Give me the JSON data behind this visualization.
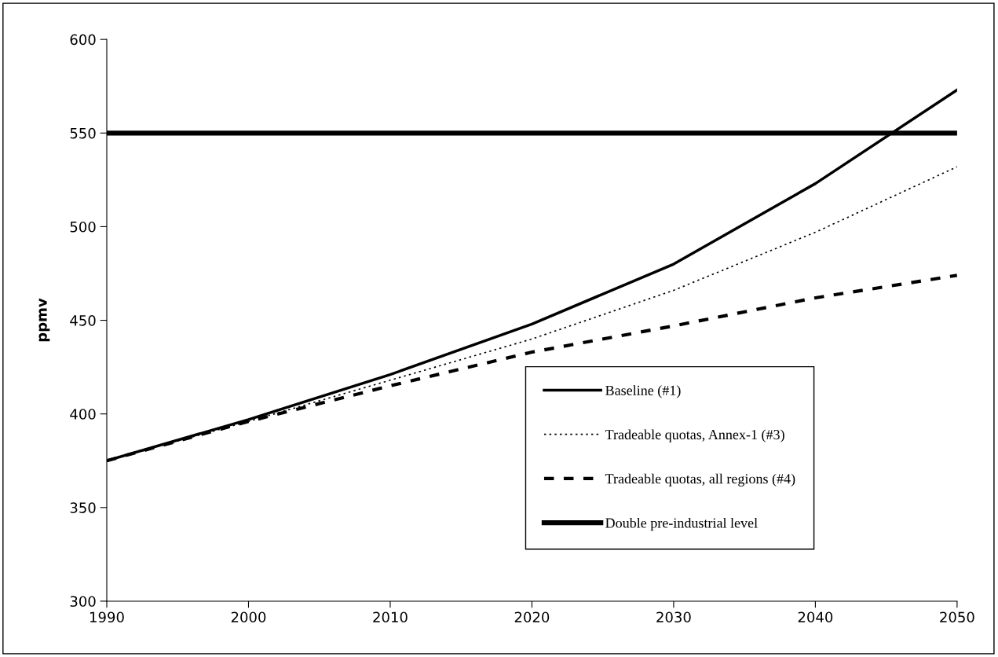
{
  "chart_data": {
    "type": "line",
    "ylabel": "ppmv",
    "x": [
      1990,
      2000,
      2010,
      2020,
      2030,
      2040,
      2050
    ],
    "series": [
      {
        "name": "Baseline (#1)",
        "color": "#000000",
        "line_style": "solid",
        "values": [
          375,
          397,
          421,
          448,
          480,
          523,
          573
        ]
      },
      {
        "name": "Tradeable quotas, Annex-1 (#3)",
        "color": "#000000",
        "line_style": "dotted",
        "values": [
          375,
          396,
          418,
          440,
          466,
          497,
          532
        ]
      },
      {
        "name": "Tradeable quotas, all regions (#4)",
        "color": "#000000",
        "line_style": "dashed",
        "values": [
          375,
          396,
          415,
          433,
          447,
          462,
          474
        ]
      }
    ],
    "ref_lines": [
      {
        "axis": "y",
        "value": 550,
        "label": "Double pre-industrial level",
        "color": "#000000"
      }
    ],
    "xlim": [
      1990,
      2050
    ],
    "xticks": [
      1990,
      2000,
      2010,
      2020,
      2030,
      2040,
      2050
    ],
    "ylim": [
      300,
      600
    ],
    "yticks": [
      300,
      350,
      400,
      450,
      500,
      550,
      600
    ],
    "grid": false,
    "legend": "bottom right",
    "marker": "none"
  }
}
